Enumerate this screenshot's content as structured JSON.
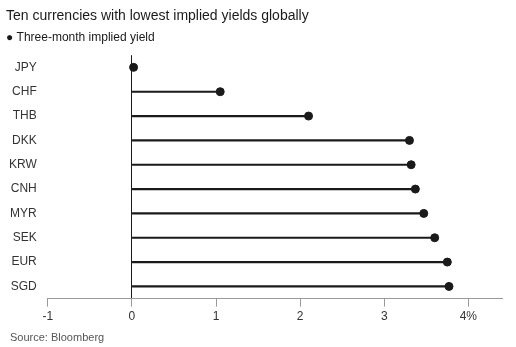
{
  "chart_data": {
    "type": "lollipop",
    "orientation": "horizontal",
    "title": "Ten currencies with lowest implied yields globally",
    "subtitle": "● Three-month implied yield",
    "annotations": [
      "Source: Bloomberg"
    ],
    "categories": [
      "JPY",
      "CHF",
      "THB",
      "DKK",
      "KRW",
      "CNH",
      "MYR",
      "SEK",
      "EUR",
      "SGD"
    ],
    "values": [
      0.02,
      1.05,
      2.1,
      3.3,
      3.32,
      3.37,
      3.47,
      3.6,
      3.75,
      3.77
    ],
    "xlim": [
      -1,
      4.4
    ],
    "xticks": [
      -1,
      0,
      1,
      2,
      3,
      {
        "value": 4,
        "label": "4%"
      }
    ],
    "color": "#1a1a1a",
    "grid": false
  }
}
